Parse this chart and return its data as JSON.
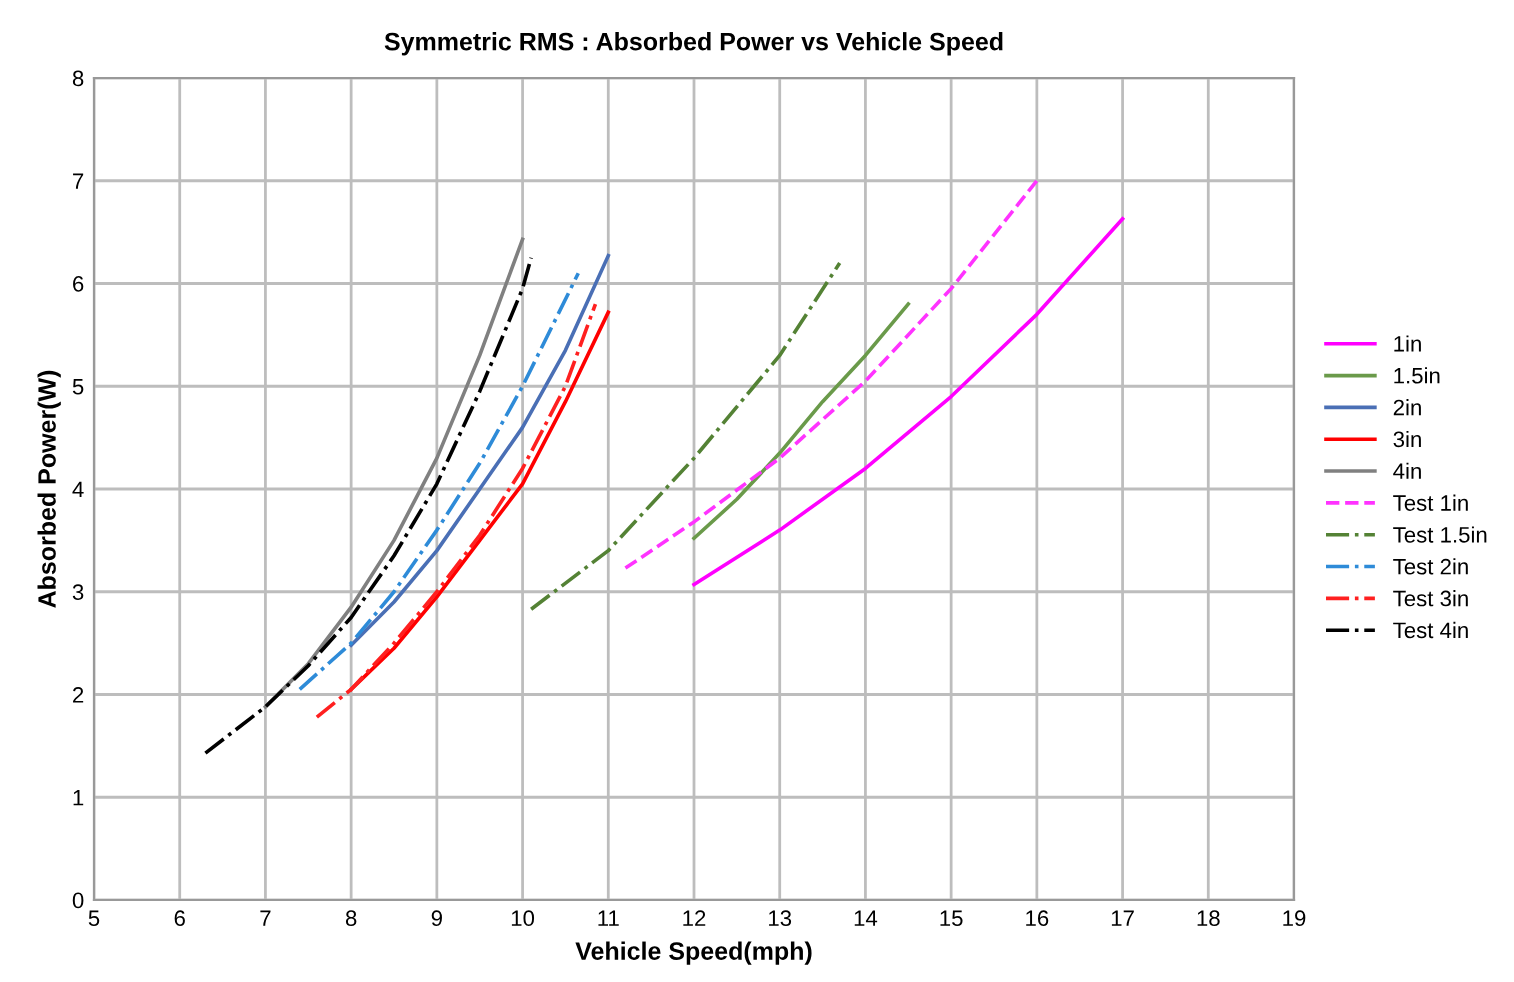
{
  "chart_data": {
    "type": "line",
    "title": "Symmetric RMS : Absorbed Power vs Vehicle Speed",
    "xlabel": "Vehicle Speed(mph)",
    "ylabel": "Absorbed Power(W)",
    "xlim": [
      5,
      19
    ],
    "xticks": [
      5,
      6,
      7,
      8,
      9,
      10,
      11,
      12,
      13,
      14,
      15,
      16,
      17,
      18,
      19
    ],
    "ylim": [
      0,
      8
    ],
    "yticks": [
      0,
      1,
      2,
      3,
      4,
      5,
      6,
      7,
      8
    ],
    "grid": true,
    "legend": "right",
    "series": [
      {
        "name": "1in",
        "color": "#ff00ff",
        "line_style": "solid",
        "x": [
          12,
          13,
          14,
          15,
          16,
          17
        ],
        "values": [
          3.07,
          3.6,
          4.2,
          4.9,
          5.7,
          6.63
        ]
      },
      {
        "name": "1.5in",
        "color": "#6a9a4a",
        "line_style": "solid",
        "x": [
          12,
          12.5,
          13,
          13.5,
          14,
          14.5
        ],
        "values": [
          3.52,
          3.9,
          4.35,
          4.85,
          5.3,
          5.8
        ]
      },
      {
        "name": "2in",
        "color": "#4a6fb5",
        "line_style": "solid",
        "x": [
          8,
          8.5,
          9,
          9.5,
          10,
          10.5,
          11
        ],
        "values": [
          2.48,
          2.9,
          3.4,
          4.0,
          4.6,
          5.35,
          6.27
        ]
      },
      {
        "name": "3in",
        "color": "#ff0000",
        "line_style": "solid",
        "x": [
          8,
          8.5,
          9,
          9.5,
          10,
          10.5,
          11
        ],
        "values": [
          2.05,
          2.45,
          2.95,
          3.5,
          4.05,
          4.85,
          5.72
        ]
      },
      {
        "name": "4in",
        "color": "#808080",
        "line_style": "solid",
        "x": [
          7,
          7.5,
          8,
          8.5,
          9,
          9.5,
          10
        ],
        "values": [
          1.88,
          2.3,
          2.85,
          3.5,
          4.3,
          5.3,
          6.43
        ]
      },
      {
        "name": "Test 1in",
        "color": "#ff33ff",
        "line_style": "dashed",
        "x": [
          11.2,
          12,
          13,
          14,
          15,
          16
        ],
        "values": [
          3.23,
          3.68,
          4.3,
          5.05,
          5.95,
          7.0
        ]
      },
      {
        "name": "Test 1.5in",
        "color": "#548235",
        "line_style": "dashdot",
        "x": [
          10.1,
          11,
          12,
          13,
          13.7
        ],
        "values": [
          2.83,
          3.4,
          4.3,
          5.3,
          6.2
        ]
      },
      {
        "name": "Test 2in",
        "color": "#2e8bd8",
        "line_style": "dashdot",
        "x": [
          7.4,
          8,
          8.5,
          9,
          9.5,
          10,
          10.65
        ],
        "values": [
          2.05,
          2.5,
          3.0,
          3.6,
          4.25,
          5.0,
          6.1
        ]
      },
      {
        "name": "Test 3in",
        "color": "#ff2020",
        "line_style": "dashdot",
        "x": [
          7.6,
          8,
          8.5,
          9,
          9.5,
          10,
          10.5,
          10.85
        ],
        "values": [
          1.78,
          2.05,
          2.5,
          3.0,
          3.55,
          4.2,
          5.0,
          5.8
        ]
      },
      {
        "name": "Test 4in",
        "color": "#000000",
        "line_style": "dashdot",
        "x": [
          6.3,
          7,
          7.5,
          8,
          8.5,
          9,
          9.5,
          10,
          10.1
        ],
        "values": [
          1.43,
          1.88,
          2.28,
          2.75,
          3.35,
          4.05,
          4.95,
          5.95,
          6.25
        ]
      }
    ]
  }
}
